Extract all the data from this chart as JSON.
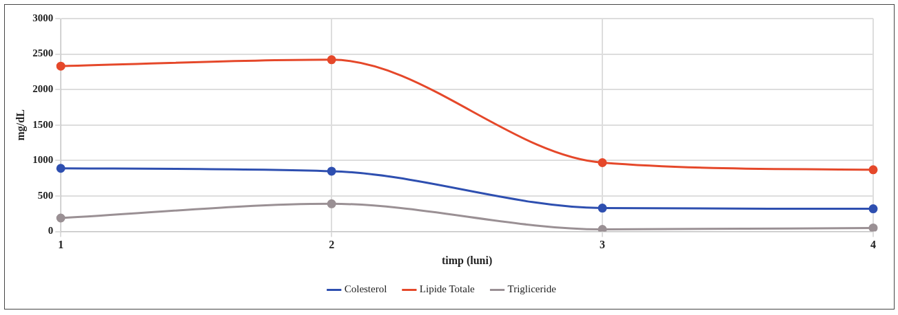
{
  "chart_data": {
    "type": "line",
    "xlabel": "timp (luni)",
    "ylabel": "mg/dL",
    "categories": [
      "1",
      "2",
      "3",
      "4"
    ],
    "series": [
      {
        "name": "Colesterol",
        "color": "#2e4fb0",
        "values": [
          890,
          850,
          330,
          320
        ]
      },
      {
        "name": "Lipide Totale",
        "color": "#e5482a",
        "values": [
          2330,
          2420,
          970,
          870
        ]
      },
      {
        "name": "Trigliceride",
        "color": "#9a9094",
        "values": [
          190,
          390,
          30,
          50
        ]
      }
    ],
    "ylim": [
      0,
      3000
    ],
    "yticks": [
      0,
      500,
      1000,
      1500,
      2000,
      2500,
      3000
    ],
    "grid": true,
    "legend": "bottom",
    "marker": "circle",
    "line_style": "solid"
  }
}
